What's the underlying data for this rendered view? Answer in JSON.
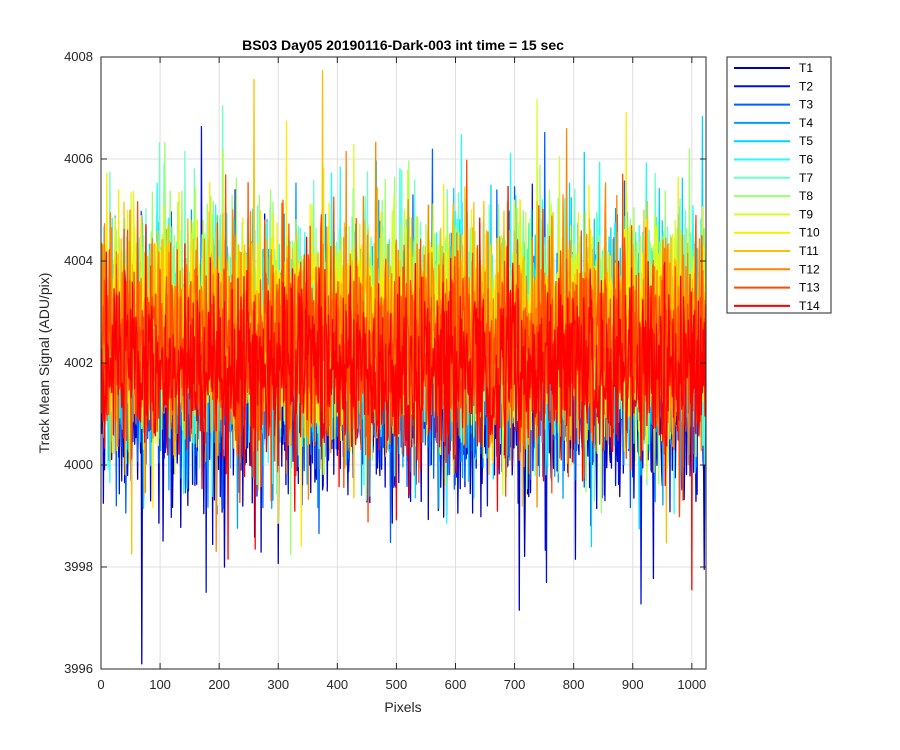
{
  "chart_data": {
    "type": "line",
    "title": "BS03 Day05 20190116-Dark-003 int time = 15 sec",
    "xlabel": "Pixels",
    "ylabel": "Track Mean Signal (ADU/pix)",
    "xlim": [
      0,
      1024
    ],
    "ylim": [
      3996,
      4008
    ],
    "xticks": [
      0,
      100,
      200,
      300,
      400,
      500,
      600,
      700,
      800,
      900,
      1000
    ],
    "yticks": [
      3996,
      3998,
      4000,
      4002,
      4004,
      4006,
      4008
    ],
    "grid": true,
    "legend_position": "outside-right-top",
    "x_range_points": [
      1,
      1024
    ],
    "series": [
      {
        "name": "T1",
        "color": "#0000bf",
        "mean": 4001.3,
        "spread": 1.05
      },
      {
        "name": "T2",
        "color": "#0013e0",
        "mean": 4001.6,
        "spread": 1.0
      },
      {
        "name": "T3",
        "color": "#0060ff",
        "mean": 4001.9,
        "spread": 1.0
      },
      {
        "name": "T4",
        "color": "#009dff",
        "mean": 4002.1,
        "spread": 1.0
      },
      {
        "name": "T5",
        "color": "#00d4ff",
        "mean": 4002.5,
        "spread": 1.05
      },
      {
        "name": "T6",
        "color": "#20ffff",
        "mean": 4002.7,
        "spread": 1.1
      },
      {
        "name": "T7",
        "color": "#6cffc8",
        "mean": 4002.8,
        "spread": 1.05
      },
      {
        "name": "T8",
        "color": "#9cff6c",
        "mean": 4002.8,
        "spread": 1.05
      },
      {
        "name": "T9",
        "color": "#d4ff2a",
        "mean": 4002.6,
        "spread": 1.0
      },
      {
        "name": "T10",
        "color": "#ffec00",
        "mean": 4002.6,
        "spread": 1.0
      },
      {
        "name": "T11",
        "color": "#ffc000",
        "mean": 4002.5,
        "spread": 1.0
      },
      {
        "name": "T12",
        "color": "#ff8400",
        "mean": 4002.4,
        "spread": 1.0
      },
      {
        "name": "T13",
        "color": "#ff4a00",
        "mean": 4002.3,
        "spread": 1.0
      },
      {
        "name": "T14",
        "color": "#ff0000",
        "mean": 4001.8,
        "spread": 0.9
      }
    ]
  }
}
